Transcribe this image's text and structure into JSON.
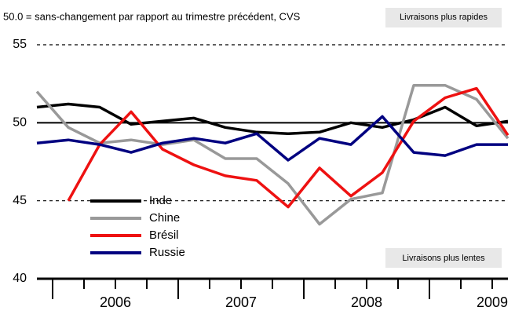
{
  "chart_data": {
    "type": "line",
    "subtitle": "50.0 = sans-changement par rapport au trimestre précédent, CVS",
    "annotations": [
      "Livraisons plus rapides",
      "Livraisons plus lentes"
    ],
    "x": [
      2005.875,
      2006.125,
      2006.375,
      2006.625,
      2006.875,
      2007.125,
      2007.375,
      2007.625,
      2007.875,
      2008.125,
      2008.375,
      2008.625,
      2008.875,
      2009.125,
      2009.375,
      2009.625
    ],
    "series": [
      {
        "name": "Inde",
        "color": "#000000",
        "values": [
          51.0,
          51.2,
          51.0,
          49.9,
          50.1,
          50.3,
          49.7,
          49.4,
          49.3,
          49.4,
          50.0,
          49.7,
          50.2,
          51.0,
          49.8,
          50.1
        ]
      },
      {
        "name": "Chine",
        "color": "#999999",
        "values": [
          52.0,
          49.7,
          48.7,
          48.9,
          48.6,
          48.9,
          47.7,
          47.7,
          46.1,
          43.5,
          45.1,
          45.5,
          52.4,
          52.4,
          51.5,
          49.0
        ]
      },
      {
        "name": "Brésil",
        "color": "#ee1111",
        "values": [
          null,
          45.0,
          48.6,
          50.7,
          48.3,
          47.3,
          46.6,
          46.3,
          44.6,
          47.1,
          45.3,
          46.8,
          50.1,
          51.6,
          52.2,
          49.2
        ]
      },
      {
        "name": "Russie",
        "color": "#000080",
        "values": [
          48.7,
          48.9,
          48.6,
          48.1,
          48.7,
          49.0,
          48.7,
          49.3,
          47.6,
          49.0,
          48.6,
          50.4,
          48.1,
          47.9,
          48.6,
          48.6
        ]
      }
    ],
    "xlim": [
      2005.875,
      2009.625
    ],
    "xticks": [
      {
        "value": 2006.5,
        "label": "2006"
      },
      {
        "value": 2007.5,
        "label": "2007"
      },
      {
        "value": 2008.5,
        "label": "2008"
      },
      {
        "value": 2009.5,
        "label": "2009"
      }
    ],
    "xtick_marks": [
      2006,
      2006.25,
      2006.5,
      2006.75,
      2007,
      2007.25,
      2007.5,
      2007.75,
      2008,
      2008.25,
      2008.5,
      2008.75,
      2009,
      2009.25,
      2009.5
    ],
    "ylim": [
      40,
      55
    ],
    "yticks": [
      40,
      45,
      50,
      55
    ],
    "grid": true,
    "reference_line": 50,
    "legend": "left"
  }
}
